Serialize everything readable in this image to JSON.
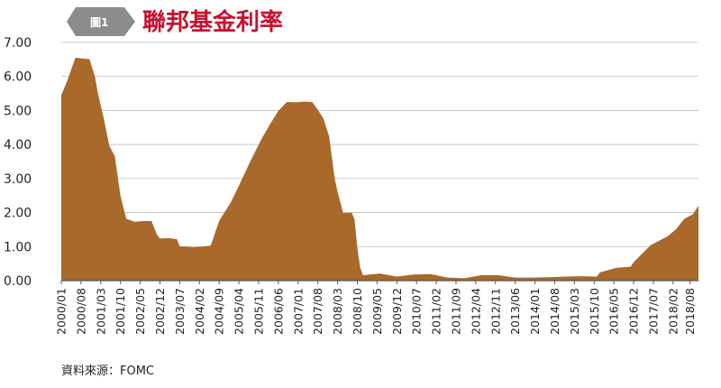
{
  "badge": "圖1",
  "chart_data": {
    "type": "area",
    "title": "聯邦基金利率",
    "xlabel": "",
    "ylabel": "",
    "ylim": [
      0,
      7
    ],
    "y_ticks": [
      "0.00",
      "1.00",
      "2.00",
      "3.00",
      "4.00",
      "5.00",
      "6.00",
      "7.00"
    ],
    "x_ticks": [
      "2000/01",
      "2000/08",
      "2001/03",
      "2001/10",
      "2002/05",
      "2002/12",
      "2003/07",
      "2004/02",
      "2004/09",
      "2005/04",
      "2005/11",
      "2006/06",
      "2007/01",
      "2007/08",
      "2008/03",
      "2008/10",
      "2009/05",
      "2009/12",
      "2010/07",
      "2011/02",
      "2011/09",
      "2012/04",
      "2012/11",
      "2013/06",
      "2014/01",
      "2014/08",
      "2015/03",
      "2015/10",
      "2016/05",
      "2016/12",
      "2017/07",
      "2018/02",
      "2018/08"
    ],
    "grid": true,
    "color": "#a8692a",
    "series": [
      {
        "x": [
          "2000/01",
          "2000/03",
          "2000/06",
          "2000/07",
          "2000/09",
          "2000/11",
          "2001/01",
          "2001/02",
          "2001/04",
          "2001/06",
          "2001/08",
          "2001/10",
          "2001/12",
          "2002/03",
          "2002/06",
          "2002/09",
          "2002/11",
          "2002/12",
          "2003/03",
          "2003/06",
          "2003/07",
          "2003/12",
          "2004/03",
          "2004/06",
          "2004/09",
          "2005/01",
          "2005/04",
          "2005/08",
          "2005/12",
          "2006/03",
          "2006/06",
          "2006/09",
          "2006/12",
          "2007/03",
          "2007/06",
          "2007/08",
          "2007/10",
          "2007/12",
          "2008/02",
          "2008/03",
          "2008/05",
          "2008/08",
          "2008/09",
          "2008/10",
          "2008/11",
          "2008/12",
          "2009/06",
          "2009/12",
          "2010/06",
          "2010/12",
          "2011/06",
          "2011/12",
          "2012/06",
          "2012/12",
          "2013/06",
          "2013/12",
          "2014/06",
          "2014/12",
          "2015/06",
          "2015/11",
          "2015/12",
          "2016/06",
          "2016/11",
          "2016/12",
          "2017/03",
          "2017/06",
          "2017/12",
          "2018/03",
          "2018/06",
          "2018/09",
          "2018/11"
        ],
        "values": [
          5.45,
          5.85,
          6.55,
          6.54,
          6.52,
          6.51,
          5.98,
          5.49,
          4.8,
          3.97,
          3.65,
          2.49,
          1.82,
          1.73,
          1.75,
          1.75,
          1.34,
          1.24,
          1.25,
          1.22,
          1.01,
          0.98,
          1.0,
          1.03,
          1.76,
          2.28,
          2.79,
          3.5,
          4.16,
          4.59,
          4.99,
          5.25,
          5.24,
          5.26,
          5.25,
          5.02,
          4.76,
          4.24,
          3.0,
          2.61,
          1.98,
          2.0,
          1.81,
          0.97,
          0.39,
          0.16,
          0.21,
          0.12,
          0.18,
          0.19,
          0.09,
          0.07,
          0.16,
          0.16,
          0.09,
          0.09,
          0.1,
          0.12,
          0.13,
          0.12,
          0.24,
          0.38,
          0.41,
          0.54,
          0.79,
          1.04,
          1.3,
          1.51,
          1.82,
          1.95,
          2.2
        ]
      }
    ]
  },
  "source": "資料來源：FOMC"
}
